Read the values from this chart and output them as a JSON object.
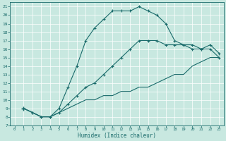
{
  "xlabel": "Humidex (Indice chaleur)",
  "ylabel": "",
  "xlim": [
    -0.5,
    23.5
  ],
  "ylim": [
    7,
    21.5
  ],
  "yticks": [
    7,
    8,
    9,
    10,
    11,
    12,
    13,
    14,
    15,
    16,
    17,
    18,
    19,
    20,
    21
  ],
  "xticks": [
    0,
    1,
    2,
    3,
    4,
    5,
    6,
    7,
    8,
    9,
    10,
    11,
    12,
    13,
    14,
    15,
    16,
    17,
    18,
    19,
    20,
    21,
    22,
    23
  ],
  "bg_color": "#c8e8e0",
  "line_color": "#1a6b6b",
  "curves": [
    {
      "x": [
        1,
        3,
        5,
        7,
        9,
        11,
        13,
        15,
        17,
        19,
        21,
        23
      ],
      "y": [
        9,
        8,
        8.5,
        9.5,
        10,
        10.5,
        11,
        11.5,
        12.5,
        13,
        14.5,
        15
      ],
      "all_x": [
        1,
        2,
        3,
        4,
        5,
        6,
        7,
        8,
        9,
        10,
        11,
        12,
        13,
        14,
        15,
        16,
        17,
        18,
        19,
        20,
        21,
        22,
        23
      ],
      "all_y": [
        9,
        8.5,
        8,
        8,
        8.5,
        9,
        9.5,
        10,
        10,
        10.5,
        10.5,
        11,
        11,
        11.5,
        11.5,
        12,
        12.5,
        13,
        13,
        14,
        14.5,
        15,
        15
      ]
    },
    {
      "all_x": [
        1,
        2,
        3,
        4,
        5,
        6,
        7,
        8,
        9,
        10,
        11,
        12,
        13,
        14,
        15,
        16,
        17,
        18,
        19,
        20,
        21,
        22,
        23
      ],
      "all_y": [
        9,
        8.5,
        8,
        8,
        9,
        11.5,
        14,
        17,
        18.5,
        19.5,
        20.5,
        20.5,
        20.5,
        21,
        20.5,
        20,
        19,
        17,
        16.5,
        16.5,
        16,
        16,
        15
      ]
    },
    {
      "all_x": [
        1,
        2,
        3,
        4,
        5,
        6,
        7,
        8,
        9,
        10,
        11,
        12,
        13,
        14,
        15,
        16,
        17,
        18,
        19,
        20,
        21,
        22,
        23
      ],
      "all_y": [
        9,
        8.5,
        8,
        8,
        8.5,
        9.5,
        10.5,
        11.5,
        12,
        13,
        14,
        15,
        16,
        17,
        17,
        17,
        16.5,
        16.5,
        16.5,
        16,
        16,
        16.5,
        15.5
      ]
    }
  ],
  "marker_curves": [
    {
      "mx": [
        3,
        4,
        5,
        6,
        7,
        8,
        9,
        10,
        11,
        12,
        13,
        14,
        15,
        16,
        17,
        18,
        19,
        20,
        21,
        22
      ],
      "my": [
        8,
        8,
        9,
        11.5,
        14,
        17,
        18.5,
        19.5,
        20.5,
        20.5,
        20.5,
        21,
        20.5,
        20,
        19,
        17,
        16.5,
        16.5,
        16,
        16
      ]
    }
  ]
}
